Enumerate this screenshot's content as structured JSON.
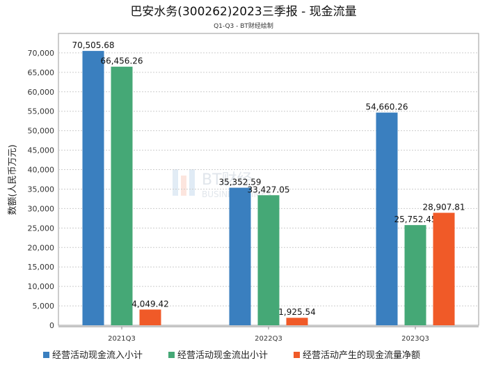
{
  "chart_data": {
    "type": "bar",
    "title": "巴安水务(300262)2023三季报 - 现金流量",
    "subtitle": "Q1-Q3 - BT财经绘制",
    "ylabel": "数额(人民币万元)",
    "xlabel": "",
    "ylim": [
      0,
      75000
    ],
    "yticks": [
      0,
      5000,
      10000,
      15000,
      20000,
      25000,
      30000,
      35000,
      40000,
      45000,
      50000,
      55000,
      60000,
      65000,
      70000
    ],
    "ytick_labels": [
      "0",
      "5,000",
      "10,000",
      "15,000",
      "20,000",
      "25,000",
      "30,000",
      "35,000",
      "40,000",
      "45,000",
      "50,000",
      "55,000",
      "60,000",
      "65,000",
      "70,000"
    ],
    "categories": [
      "2021Q3",
      "2022Q3",
      "2023Q3"
    ],
    "series": [
      {
        "name": "经营活动现金流入小计",
        "color": "#3a7fbf",
        "values": [
          70505.68,
          35352.59,
          54660.26
        ],
        "labels": [
          "70,505.68",
          "35,352.59",
          "54,660.26"
        ]
      },
      {
        "name": "经营活动现金流出小计",
        "color": "#45a876",
        "values": [
          66456.26,
          33427.05,
          25752.45
        ],
        "labels": [
          "66,456.26",
          "33,427.05",
          "25,752.45"
        ]
      },
      {
        "name": "经营活动产生的现金流量净额",
        "color": "#f05a28",
        "values": [
          4049.42,
          1925.54,
          28907.81
        ],
        "labels": [
          "4,049.42",
          "1,925.54",
          "28,907.81"
        ]
      }
    ],
    "legend": "bottom",
    "grid": true,
    "watermark": "BT财经 BUSINESS TIMES"
  }
}
